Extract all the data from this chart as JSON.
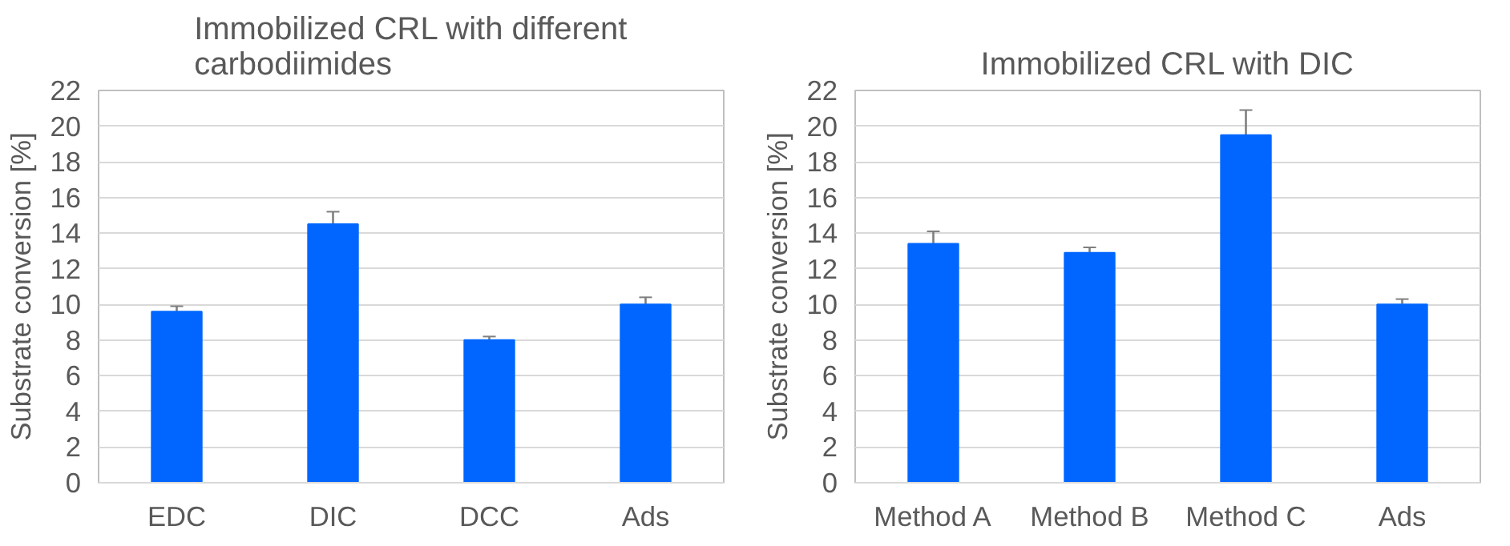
{
  "chart_data": [
    {
      "type": "bar",
      "title": "Immobilized CRL with different carbodiimides",
      "ylabel": "Substrate conversion [%]",
      "categories": [
        "EDC",
        "DIC",
        "DCC",
        "Ads"
      ],
      "values": [
        9.6,
        14.5,
        8.0,
        10.0
      ],
      "errors": [
        0.3,
        0.7,
        0.2,
        0.4
      ],
      "color": "#0066ff",
      "ylim": [
        0,
        22
      ],
      "yticks": [
        0,
        2,
        4,
        6,
        8,
        10,
        12,
        14,
        16,
        18,
        20,
        22
      ],
      "grid": "y"
    },
    {
      "type": "bar",
      "title": "Immobilized CRL with DIC",
      "ylabel": "Substrate conversion [%]",
      "categories": [
        "Method A",
        "Method B",
        "Method C",
        "Ads"
      ],
      "values": [
        13.4,
        12.9,
        19.5,
        10.0
      ],
      "errors": [
        0.7,
        0.3,
        1.4,
        0.3
      ],
      "color": "#0066ff",
      "ylim": [
        0,
        22
      ],
      "yticks": [
        0,
        2,
        4,
        6,
        8,
        10,
        12,
        14,
        16,
        18,
        20,
        22
      ],
      "grid": "y"
    }
  ]
}
